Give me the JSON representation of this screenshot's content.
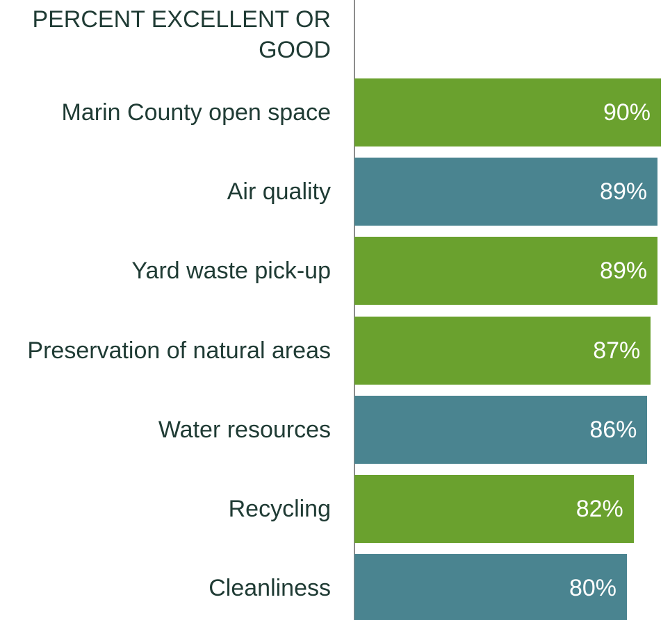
{
  "chart_data": {
    "type": "bar",
    "orientation": "horizontal",
    "title": "PERCENT EXCELLENT OR GOOD",
    "categories": [
      "Marin County open space",
      "Air quality",
      "Yard waste pick-up",
      "Preservation of natural areas",
      "Water resources",
      "Recycling",
      "Cleanliness"
    ],
    "values": [
      90,
      89,
      89,
      87,
      86,
      82,
      80
    ],
    "value_labels": [
      "90%",
      "89%",
      "89%",
      "87%",
      "86%",
      "82%",
      "80%"
    ],
    "colors": [
      "#6aa12e",
      "#4a8490",
      "#6aa12e",
      "#6aa12e",
      "#4a8490",
      "#6aa12e",
      "#4a8490"
    ],
    "xlim": [
      0,
      90
    ]
  }
}
